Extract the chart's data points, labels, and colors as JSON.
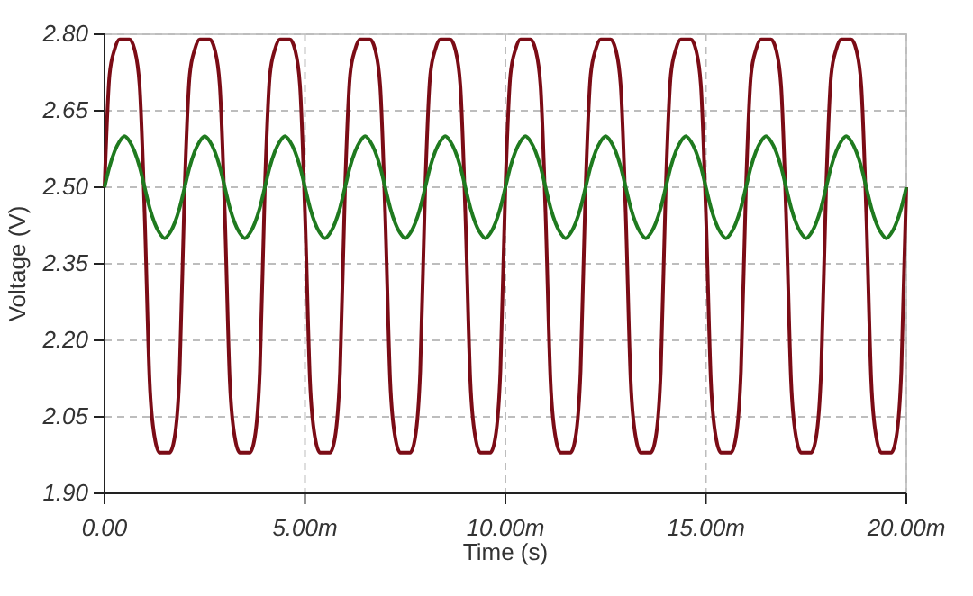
{
  "chart_data": {
    "type": "line",
    "xlabel": "Time (s)",
    "ylabel": "Voltage (V)",
    "xlim": [
      0,
      20
    ],
    "xticks": [
      {
        "value": 0,
        "label": "0.00"
      },
      {
        "value": 5,
        "label": "5.00m"
      },
      {
        "value": 10,
        "label": "10.00m"
      },
      {
        "value": 15,
        "label": "15.00m"
      },
      {
        "value": 20,
        "label": "20.00m"
      }
    ],
    "ylim": [
      1.9,
      2.8
    ],
    "yticks": [
      {
        "value": 1.9,
        "label": "1.90"
      },
      {
        "value": 2.05,
        "label": "2.05"
      },
      {
        "value": 2.2,
        "label": "2.20"
      },
      {
        "value": 2.35,
        "label": "2.35"
      },
      {
        "value": 2.5,
        "label": "2.50"
      },
      {
        "value": 2.65,
        "label": "2.65"
      },
      {
        "value": 2.8,
        "label": "2.80"
      }
    ],
    "grid": true,
    "marker": "none",
    "line_style": "solid",
    "x": [
      0,
      0.125,
      0.25,
      0.375,
      0.5,
      0.625,
      0.75,
      0.875,
      1,
      1.125,
      1.25,
      1.375,
      1.5,
      1.625,
      1.75,
      1.875,
      2,
      2.125,
      2.25,
      2.375,
      2.5,
      2.625,
      2.75,
      2.875,
      3,
      3.125,
      3.25,
      3.375,
      3.5,
      3.625,
      3.75,
      3.875,
      4,
      4.125,
      4.25,
      4.375,
      4.5,
      4.625,
      4.75,
      4.875,
      5,
      5.125,
      5.25,
      5.375,
      5.5,
      5.625,
      5.75,
      5.875,
      6,
      6.125,
      6.25,
      6.375,
      6.5,
      6.625,
      6.75,
      6.875,
      7,
      7.125,
      7.25,
      7.375,
      7.5,
      7.625,
      7.75,
      7.875,
      8,
      8.125,
      8.25,
      8.375,
      8.5,
      8.625,
      8.75,
      8.875,
      9,
      9.125,
      9.25,
      9.375,
      9.5,
      9.625,
      9.75,
      9.875,
      10,
      10.125,
      10.25,
      10.375,
      10.5,
      10.625,
      10.75,
      10.875,
      11,
      11.125,
      11.25,
      11.375,
      11.5,
      11.625,
      11.75,
      11.875,
      12,
      12.125,
      12.25,
      12.375,
      12.5,
      12.625,
      12.75,
      12.875,
      13,
      13.125,
      13.25,
      13.375,
      13.5,
      13.625,
      13.75,
      13.875,
      14,
      14.125,
      14.25,
      14.375,
      14.5,
      14.625,
      14.75,
      14.875,
      15,
      15.125,
      15.25,
      15.375,
      15.5,
      15.625,
      15.75,
      15.875,
      16,
      16.125,
      16.25,
      16.375,
      16.5,
      16.625,
      16.75,
      16.875,
      17,
      17.125,
      17.25,
      17.375,
      17.5,
      17.625,
      17.75,
      17.875,
      18,
      18.125,
      18.25,
      18.375,
      18.5,
      18.625,
      18.75,
      18.875,
      19,
      19.125,
      19.25,
      19.375,
      19.5,
      19.625,
      19.75,
      19.875,
      20
    ],
    "series": [
      {
        "color": "#7b0c16",
        "values": [
          2.5,
          2.72,
          2.77,
          2.79,
          2.79,
          2.79,
          2.77,
          2.7,
          2.45,
          2.12,
          2.01,
          1.98,
          1.98,
          1.98,
          2.01,
          2.14,
          2.5,
          2.72,
          2.77,
          2.79,
          2.79,
          2.79,
          2.77,
          2.7,
          2.45,
          2.12,
          2.01,
          1.98,
          1.98,
          1.98,
          2.01,
          2.14,
          2.5,
          2.72,
          2.77,
          2.79,
          2.79,
          2.79,
          2.77,
          2.7,
          2.45,
          2.12,
          2.01,
          1.98,
          1.98,
          1.98,
          2.01,
          2.14,
          2.5,
          2.72,
          2.77,
          2.79,
          2.79,
          2.79,
          2.77,
          2.7,
          2.45,
          2.12,
          2.01,
          1.98,
          1.98,
          1.98,
          2.01,
          2.14,
          2.5,
          2.72,
          2.77,
          2.79,
          2.79,
          2.79,
          2.77,
          2.7,
          2.45,
          2.12,
          2.01,
          1.98,
          1.98,
          1.98,
          2.01,
          2.14,
          2.5,
          2.72,
          2.77,
          2.79,
          2.79,
          2.79,
          2.77,
          2.7,
          2.45,
          2.12,
          2.01,
          1.98,
          1.98,
          1.98,
          2.01,
          2.14,
          2.5,
          2.72,
          2.77,
          2.79,
          2.79,
          2.79,
          2.77,
          2.7,
          2.45,
          2.12,
          2.01,
          1.98,
          1.98,
          1.98,
          2.01,
          2.14,
          2.5,
          2.72,
          2.77,
          2.79,
          2.79,
          2.79,
          2.77,
          2.7,
          2.45,
          2.12,
          2.01,
          1.98,
          1.98,
          1.98,
          2.01,
          2.14,
          2.5,
          2.72,
          2.77,
          2.79,
          2.79,
          2.79,
          2.77,
          2.7,
          2.45,
          2.12,
          2.01,
          1.98,
          1.98,
          1.98,
          2.01,
          2.14,
          2.5,
          2.72,
          2.77,
          2.79,
          2.79,
          2.79,
          2.77,
          2.7,
          2.45,
          2.12,
          2.01,
          1.98,
          1.98,
          1.98,
          2.01,
          2.14,
          2.5
        ]
      },
      {
        "color": "#1f7a1f",
        "values": [
          2.5,
          2.54,
          2.57,
          2.59,
          2.6,
          2.59,
          2.57,
          2.54,
          2.5,
          2.46,
          2.43,
          2.41,
          2.4,
          2.41,
          2.43,
          2.46,
          2.5,
          2.54,
          2.57,
          2.59,
          2.6,
          2.59,
          2.57,
          2.54,
          2.5,
          2.46,
          2.43,
          2.41,
          2.4,
          2.41,
          2.43,
          2.46,
          2.5,
          2.54,
          2.57,
          2.59,
          2.6,
          2.59,
          2.57,
          2.54,
          2.5,
          2.46,
          2.43,
          2.41,
          2.4,
          2.41,
          2.43,
          2.46,
          2.5,
          2.54,
          2.57,
          2.59,
          2.6,
          2.59,
          2.57,
          2.54,
          2.5,
          2.46,
          2.43,
          2.41,
          2.4,
          2.41,
          2.43,
          2.46,
          2.5,
          2.54,
          2.57,
          2.59,
          2.6,
          2.59,
          2.57,
          2.54,
          2.5,
          2.46,
          2.43,
          2.41,
          2.4,
          2.41,
          2.43,
          2.46,
          2.5,
          2.54,
          2.57,
          2.59,
          2.6,
          2.59,
          2.57,
          2.54,
          2.5,
          2.46,
          2.43,
          2.41,
          2.4,
          2.41,
          2.43,
          2.46,
          2.5,
          2.54,
          2.57,
          2.59,
          2.6,
          2.59,
          2.57,
          2.54,
          2.5,
          2.46,
          2.43,
          2.41,
          2.4,
          2.41,
          2.43,
          2.46,
          2.5,
          2.54,
          2.57,
          2.59,
          2.6,
          2.59,
          2.57,
          2.54,
          2.5,
          2.46,
          2.43,
          2.41,
          2.4,
          2.41,
          2.43,
          2.46,
          2.5,
          2.54,
          2.57,
          2.59,
          2.6,
          2.59,
          2.57,
          2.54,
          2.5,
          2.46,
          2.43,
          2.41,
          2.4,
          2.41,
          2.43,
          2.46,
          2.5,
          2.54,
          2.57,
          2.59,
          2.6,
          2.59,
          2.57,
          2.54,
          2.5,
          2.46,
          2.43,
          2.41,
          2.4,
          2.41,
          2.43,
          2.46,
          2.5
        ]
      }
    ]
  }
}
